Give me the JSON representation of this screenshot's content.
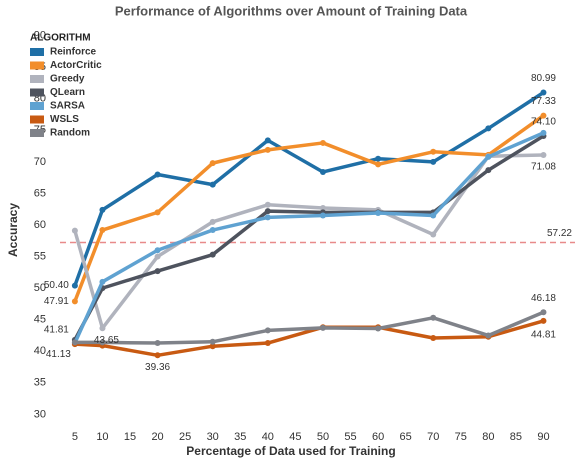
{
  "chart_data": {
    "type": "line",
    "title": "Performance of Algorithms over Amount of Training Data",
    "x_label": "Percentage of Data used for Training",
    "y_label": "Accuracy",
    "legend_title": "ALGORITHM",
    "x": [
      5,
      10,
      20,
      30,
      40,
      50,
      60,
      70,
      80,
      90
    ],
    "xlim": [
      2.3,
      93
    ],
    "xticks": [
      5,
      10,
      15,
      20,
      25,
      30,
      35,
      40,
      45,
      50,
      55,
      60,
      65,
      70,
      75,
      80,
      85,
      90
    ],
    "ylim": [
      28,
      92
    ],
    "yticks": [
      30,
      35,
      40,
      45,
      50,
      55,
      60,
      65,
      70,
      75,
      80,
      85,
      90
    ],
    "reference_line": {
      "value": 57.22,
      "label": "57.22",
      "color": "#e88a8a"
    },
    "series": [
      {
        "name": "Reinforce",
        "color": "#1f6fa6",
        "values": [
          50.4,
          62.4,
          68.0,
          66.4,
          73.4,
          68.4,
          70.5,
          70.0,
          75.3,
          80.99
        ],
        "value_labels": [
          "50.40",
          null,
          null,
          null,
          null,
          null,
          null,
          null,
          null,
          "80.99"
        ]
      },
      {
        "name": "ActorCritic",
        "color": "#f28e2b",
        "values": [
          47.91,
          59.2,
          62.0,
          69.8,
          71.9,
          73.0,
          69.6,
          71.6,
          71.1,
          77.33
        ],
        "value_labels": [
          "47.91",
          null,
          null,
          null,
          null,
          null,
          null,
          null,
          null,
          "77.33"
        ]
      },
      {
        "name": "Greedy",
        "color": "#b0b3bd",
        "values": [
          59.1,
          43.65,
          55.0,
          60.5,
          63.2,
          62.7,
          62.4,
          58.5,
          70.9,
          71.08
        ],
        "value_labels": [
          null,
          "43.65",
          null,
          null,
          null,
          null,
          null,
          null,
          null,
          "71.08"
        ]
      },
      {
        "name": "QLearn",
        "color": "#4e535e",
        "values": [
          41.81,
          50.0,
          52.7,
          55.3,
          62.2,
          62.0,
          62.0,
          62.0,
          68.7,
          74.1
        ],
        "value_labels": [
          "41.81",
          null,
          null,
          null,
          null,
          null,
          null,
          null,
          null,
          "74.10"
        ]
      },
      {
        "name": "SARSA",
        "color": "#5fa2d1",
        "values": [
          41.3,
          51.0,
          56.0,
          59.2,
          61.2,
          61.5,
          61.9,
          61.5,
          70.8,
          74.6
        ]
      },
      {
        "name": "WSLS",
        "color": "#c85a12",
        "values": [
          41.13,
          40.9,
          39.36,
          40.8,
          41.3,
          43.8,
          43.8,
          42.1,
          42.3,
          44.81
        ],
        "value_labels": [
          "41.13",
          null,
          "39.36",
          null,
          null,
          null,
          null,
          null,
          null,
          "44.81"
        ]
      },
      {
        "name": "Random",
        "color": "#7f8289",
        "values": [
          41.4,
          41.4,
          41.3,
          41.5,
          43.3,
          43.7,
          43.6,
          45.3,
          42.5,
          46.18
        ],
        "value_labels": [
          null,
          null,
          null,
          null,
          null,
          null,
          null,
          null,
          null,
          "46.18"
        ]
      }
    ]
  }
}
